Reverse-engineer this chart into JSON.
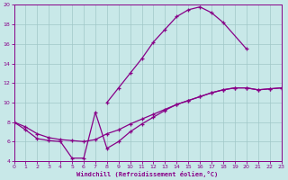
{
  "bg_color": "#c8e8e8",
  "grid_color": "#a0c8c8",
  "line_color": "#880088",
  "xlabel": "Windchill (Refroidissement éolien,°C)",
  "xlim": [
    0,
    23
  ],
  "ylim": [
    4,
    20
  ],
  "yticks": [
    4,
    6,
    8,
    10,
    12,
    14,
    16,
    18,
    20
  ],
  "xticks": [
    0,
    1,
    2,
    3,
    4,
    5,
    6,
    7,
    8,
    9,
    10,
    11,
    12,
    13,
    14,
    15,
    16,
    17,
    18,
    19,
    20,
    21,
    22,
    23
  ],
  "curve_upper_x": [
    8,
    9,
    10,
    11,
    12,
    13,
    14,
    15,
    16,
    17,
    18,
    20
  ],
  "curve_upper_y": [
    10.0,
    11.5,
    13.0,
    14.5,
    16.2,
    17.5,
    18.8,
    19.5,
    19.8,
    19.2,
    18.2,
    15.5
  ],
  "curve_mid_x": [
    0,
    1,
    2,
    3,
    4,
    5,
    6,
    7,
    8,
    9,
    10,
    11,
    12,
    13,
    14,
    15,
    16,
    17,
    18,
    19,
    20,
    21,
    22,
    23
  ],
  "curve_mid_y": [
    8.0,
    7.5,
    6.8,
    6.4,
    6.2,
    6.1,
    6.0,
    6.2,
    6.8,
    7.2,
    7.8,
    8.3,
    8.8,
    9.3,
    9.8,
    10.2,
    10.6,
    11.0,
    11.3,
    11.5,
    11.5,
    11.3,
    11.4,
    11.5
  ],
  "curve_low_x": [
    0,
    1,
    2,
    3,
    4,
    5,
    6,
    7,
    8,
    9,
    10,
    11,
    12,
    13,
    14,
    15,
    16,
    17,
    18,
    19,
    20,
    21,
    22,
    23
  ],
  "curve_low_y": [
    8.0,
    7.2,
    6.3,
    6.1,
    6.0,
    4.3,
    4.3,
    9.0,
    5.3,
    6.0,
    7.0,
    7.8,
    8.5,
    9.2,
    9.8,
    10.2,
    10.6,
    11.0,
    11.3,
    11.5,
    11.5,
    11.3,
    11.4,
    11.5
  ]
}
